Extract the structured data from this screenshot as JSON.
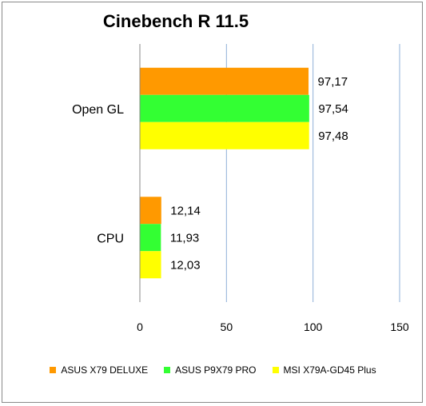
{
  "chart_data": {
    "type": "bar",
    "orientation": "horizontal",
    "title": "Cinebench R 11.5",
    "xlabel": "",
    "ylabel": "",
    "xlim": [
      0,
      150
    ],
    "x_ticks": [
      "0",
      "50",
      "100",
      "150"
    ],
    "categories": [
      "Open GL",
      "CPU"
    ],
    "series": [
      {
        "name": "ASUS X79 DELUXE",
        "color": "#FF9900",
        "values": [
          97.17,
          12.14
        ],
        "labels": [
          "97,17",
          "12,14"
        ]
      },
      {
        "name": "ASUS P9X79 PRO",
        "color": "#33FF33",
        "values": [
          97.54,
          11.93
        ],
        "labels": [
          "97,54",
          "11,93"
        ]
      },
      {
        "name": "MSI X79A-GD45 Plus",
        "color": "#FFFF00",
        "values": [
          97.48,
          12.03
        ],
        "labels": [
          "97,48",
          "12,03"
        ]
      }
    ],
    "grid": "vertical",
    "grid_color": "#8fb0d8",
    "legend_position": "bottom"
  }
}
